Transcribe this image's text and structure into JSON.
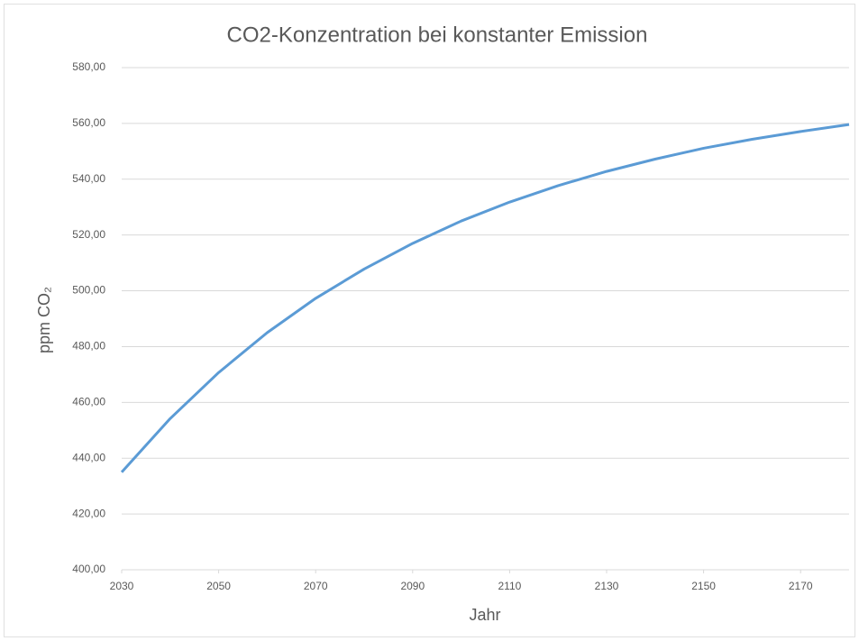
{
  "chart_data": {
    "type": "line",
    "title": "CO2-Konzentration bei konstanter Emission",
    "x_label": "Jahr",
    "y_label": "ppm CO₂",
    "x": [
      2030,
      2040,
      2050,
      2060,
      2070,
      2080,
      2090,
      2100,
      2110,
      2120,
      2130,
      2140,
      2150,
      2160,
      2170,
      2180
    ],
    "series": [
      {
        "name": "ppm CO₂",
        "color": "#5b9bd5",
        "values": [
          435,
          454.2,
          470.7,
          485.0,
          497.3,
          507.8,
          517.0,
          525.0,
          531.8,
          537.7,
          542.8,
          547.2,
          551.1,
          554.3,
          557.1,
          559.6
        ]
      }
    ],
    "xlim": [
      2030,
      2180
    ],
    "xticks": [
      2030,
      2050,
      2070,
      2090,
      2110,
      2130,
      2150,
      2170
    ],
    "ylim": [
      400,
      580
    ],
    "yticks": [
      {
        "value": 400,
        "label": "400,00"
      },
      {
        "value": 420,
        "label": "420,00"
      },
      {
        "value": 440,
        "label": "440,00"
      },
      {
        "value": 460,
        "label": "460,00"
      },
      {
        "value": 480,
        "label": "480,00"
      },
      {
        "value": 500,
        "label": "500,00"
      },
      {
        "value": 520,
        "label": "520,00"
      },
      {
        "value": 540,
        "label": "540,00"
      },
      {
        "value": 560,
        "label": "560,00"
      },
      {
        "value": 580,
        "label": "580,00"
      }
    ],
    "grid": true
  }
}
